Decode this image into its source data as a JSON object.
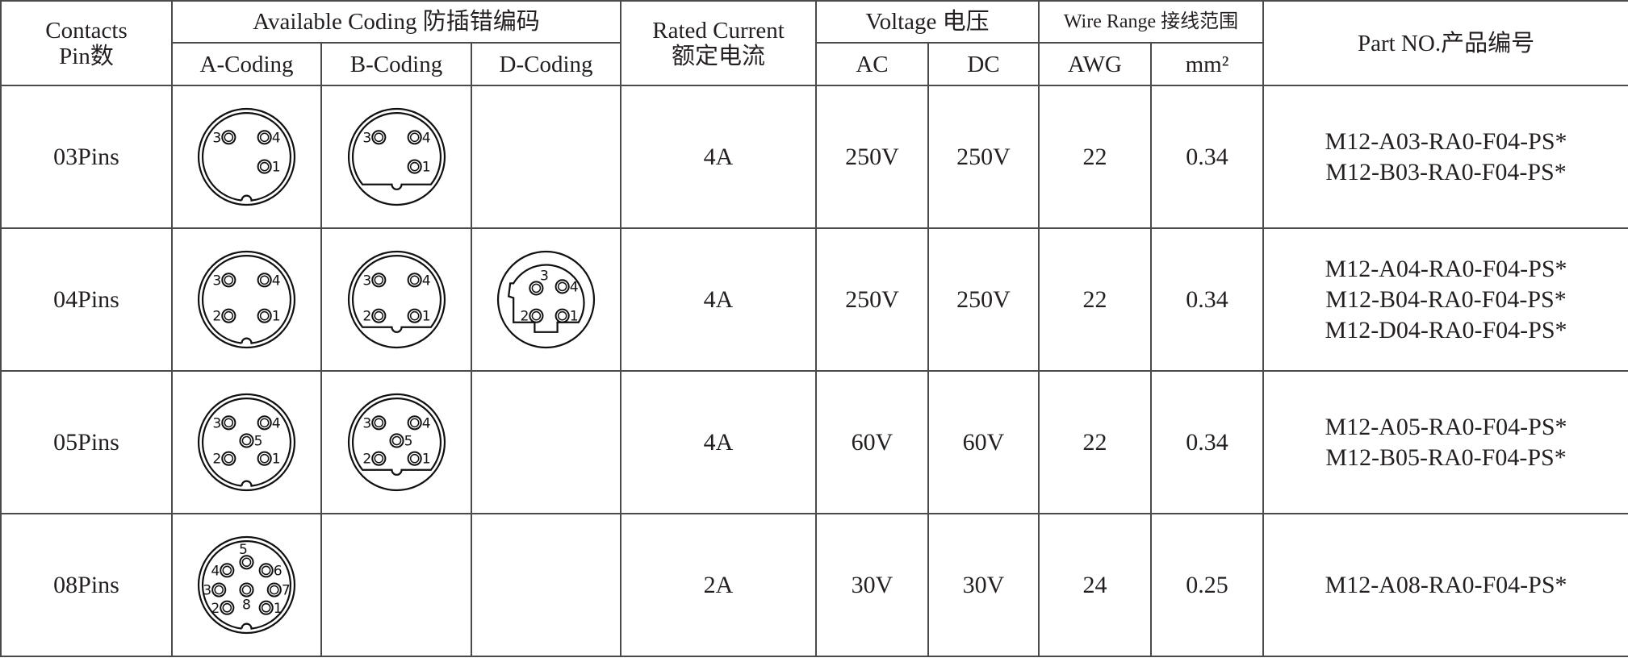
{
  "header": {
    "contacts": "Contacts",
    "pin_count": "Pin数",
    "available_coding": "Available Coding 防插错编码",
    "a_coding": "A-Coding",
    "b_coding": "B-Coding",
    "d_coding": "D-Coding",
    "rated_current": "Rated Current",
    "rated_current_cn": "额定电流",
    "voltage": "Voltage 电压",
    "ac": "AC",
    "dc": "DC",
    "wire_range": "Wire Range 接线范围",
    "awg": "AWG",
    "mm2": "mm²",
    "part_no": "Part NO.产品编号"
  },
  "rows": [
    {
      "pins": "03Pins",
      "codings": [
        "A",
        "B",
        ""
      ],
      "pin_count": 3,
      "current": "4A",
      "ac": "250V",
      "dc": "250V",
      "awg": "22",
      "mm2": "0.34",
      "parts": [
        "M12-A03-RA0-F04-PS*",
        "M12-B03-RA0-F04-PS*"
      ]
    },
    {
      "pins": "04Pins",
      "codings": [
        "A",
        "B",
        "D"
      ],
      "pin_count": 4,
      "current": "4A",
      "ac": "250V",
      "dc": "250V",
      "awg": "22",
      "mm2": "0.34",
      "parts": [
        "M12-A04-RA0-F04-PS*",
        "M12-B04-RA0-F04-PS*",
        "M12-D04-RA0-F04-PS*"
      ]
    },
    {
      "pins": "05Pins",
      "codings": [
        "A",
        "B",
        ""
      ],
      "pin_count": 5,
      "current": "4A",
      "ac": "60V",
      "dc": "60V",
      "awg": "22",
      "mm2": "0.34",
      "parts": [
        "M12-A05-RA0-F04-PS*",
        "M12-B05-RA0-F04-PS*"
      ]
    },
    {
      "pins": "08Pins",
      "codings": [
        "A",
        "",
        ""
      ],
      "pin_count": 8,
      "current": "2A",
      "ac": "30V",
      "dc": "30V",
      "awg": "24",
      "mm2": "0.25",
      "parts": [
        "M12-A08-RA0-F04-PS*"
      ]
    }
  ]
}
